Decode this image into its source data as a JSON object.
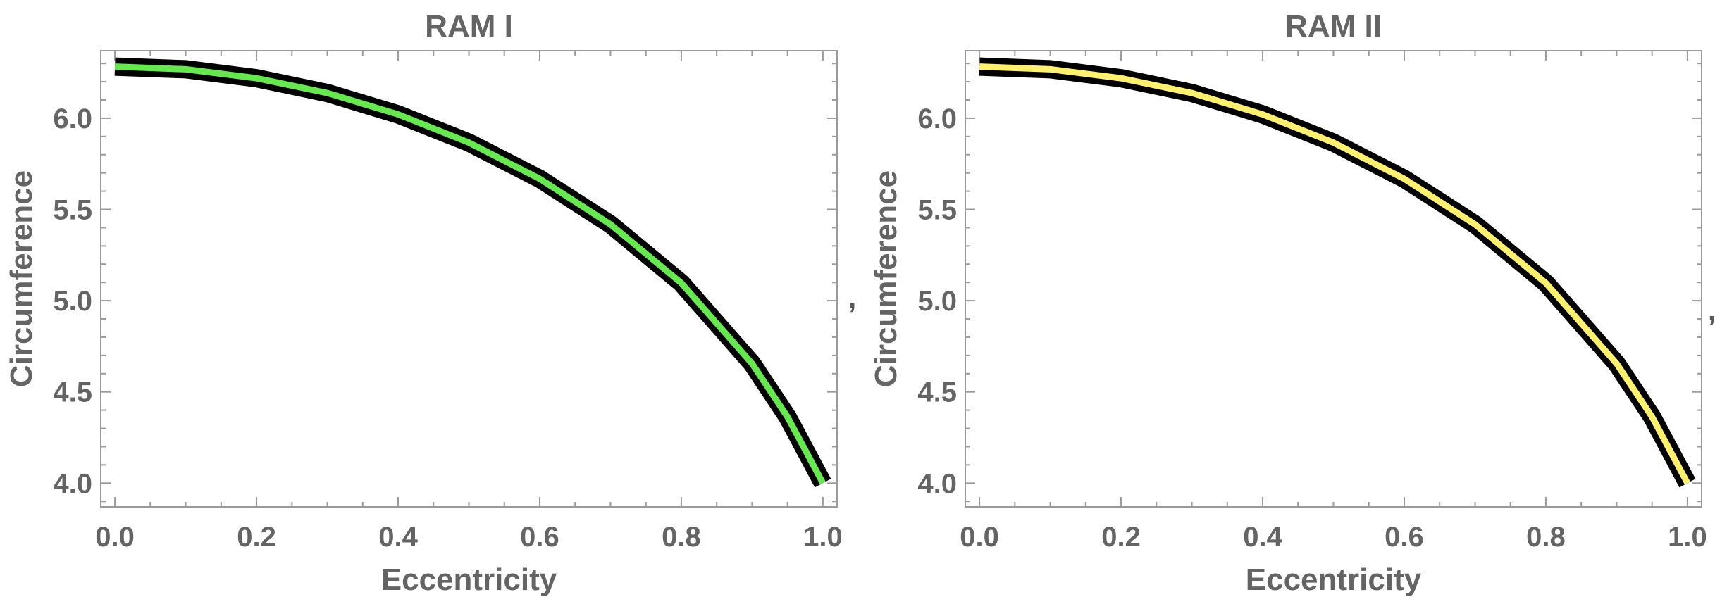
{
  "separators": [
    ",",
    ","
  ],
  "colors": {
    "text": "#646464",
    "frame": "#9a9a9a",
    "outline": "#000000"
  },
  "chart_data": [
    {
      "type": "line",
      "title": "RAM I",
      "xlabel": "Eccentricity",
      "ylabel": "Circumference",
      "xlim": [
        -0.02,
        1.02
      ],
      "ylim": [
        3.87,
        6.37
      ],
      "xticks": [
        "0.0",
        "0.2",
        "0.4",
        "0.6",
        "0.8",
        "1.0"
      ],
      "yticks": [
        "4.0",
        "4.5",
        "5.0",
        "5.5",
        "6.0"
      ],
      "grid": false,
      "series": [
        {
          "color": "#66e84f",
          "x": [
            0.0,
            0.1,
            0.2,
            0.3,
            0.4,
            0.5,
            0.6,
            0.7,
            0.8,
            0.9,
            0.95,
            1.0
          ],
          "y": [
            6.283,
            6.268,
            6.219,
            6.138,
            6.021,
            5.866,
            5.668,
            5.418,
            5.097,
            4.655,
            4.363,
            4.0
          ]
        }
      ]
    },
    {
      "type": "line",
      "title": "RAM II",
      "xlabel": "Eccentricity",
      "ylabel": "Circumference",
      "xlim": [
        -0.02,
        1.02
      ],
      "ylim": [
        3.87,
        6.37
      ],
      "xticks": [
        "0.0",
        "0.2",
        "0.4",
        "0.6",
        "0.8",
        "1.0"
      ],
      "yticks": [
        "4.0",
        "4.5",
        "5.0",
        "5.5",
        "6.0"
      ],
      "grid": false,
      "series": [
        {
          "color": "#fff06e",
          "x": [
            0.0,
            0.1,
            0.2,
            0.3,
            0.4,
            0.5,
            0.6,
            0.7,
            0.8,
            0.9,
            0.95,
            1.0
          ],
          "y": [
            6.283,
            6.268,
            6.219,
            6.138,
            6.021,
            5.866,
            5.668,
            5.418,
            5.097,
            4.655,
            4.363,
            4.0
          ]
        }
      ]
    }
  ]
}
